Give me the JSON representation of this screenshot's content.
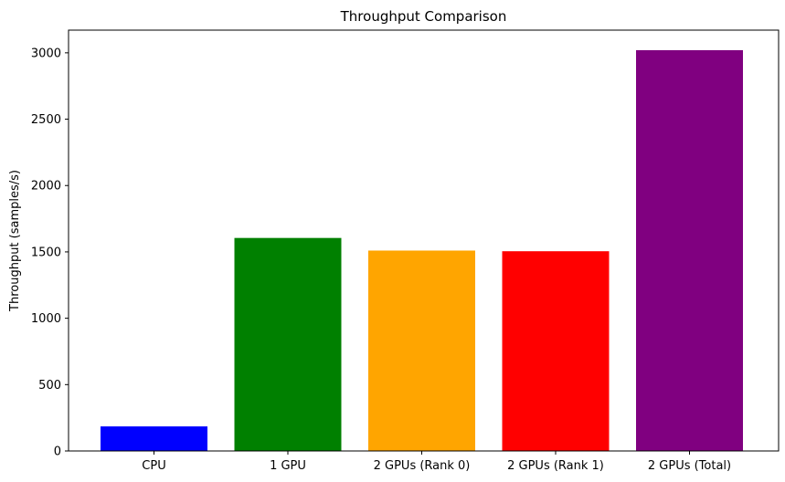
{
  "chart_data": {
    "type": "bar",
    "title": "Throughput Comparison",
    "xlabel": "",
    "ylabel": "Throughput (samples/s)",
    "categories": [
      "CPU",
      "1 GPU",
      "2 GPUs (Rank 0)",
      "2 GPUs (Rank 1)",
      "2 GPUs (Total)"
    ],
    "values": [
      185,
      1605,
      1510,
      1505,
      3020
    ],
    "colors": [
      "#0000ff",
      "#008000",
      "#ffa500",
      "#ff0000",
      "#800080"
    ],
    "ylim": [
      0,
      3171
    ],
    "yticks": [
      0,
      500,
      1000,
      1500,
      2000,
      2500,
      3000
    ],
    "grid": false,
    "legend": "none"
  }
}
